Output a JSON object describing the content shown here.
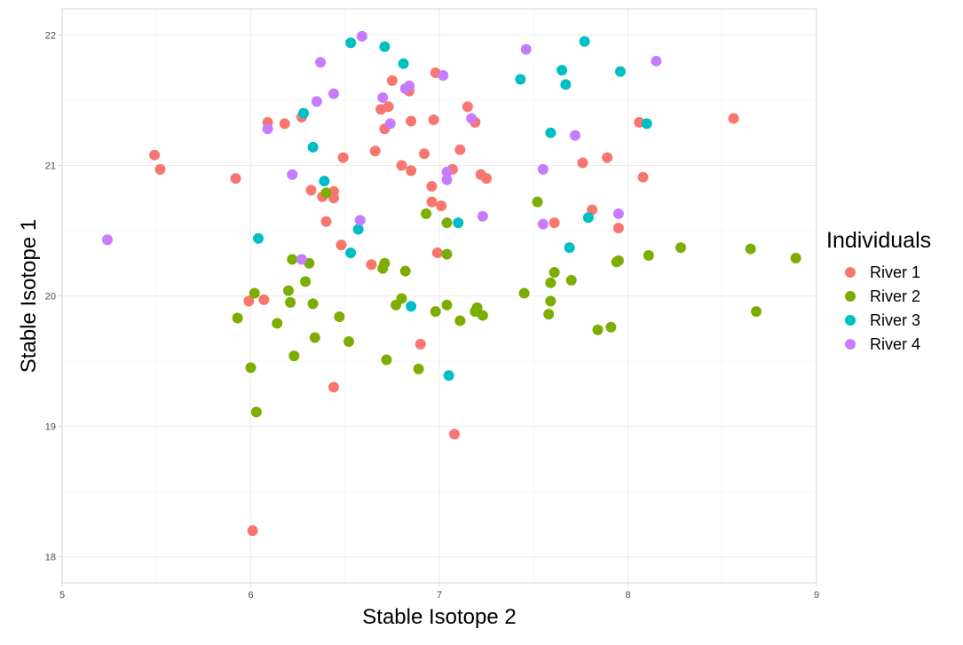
{
  "chart_data": {
    "type": "scatter",
    "title": "",
    "xlabel": "Stable Isotope 2",
    "ylabel": "Stable Isotope 1",
    "xlim": [
      5,
      9
    ],
    "ylim": [
      17.8,
      22.2
    ],
    "x_ticks": [
      5,
      6,
      7,
      8,
      9
    ],
    "y_ticks": [
      18,
      19,
      20,
      21,
      22
    ],
    "grid": true,
    "legend_title": "Individuals",
    "legend_position": "right",
    "series": [
      {
        "name": "River 1",
        "color": "#F8766D",
        "points": [
          [
            5.49,
            21.08
          ],
          [
            5.52,
            20.97
          ],
          [
            5.92,
            20.9
          ],
          [
            6.01,
            18.2
          ],
          [
            5.99,
            19.96
          ],
          [
            6.07,
            19.97
          ],
          [
            6.09,
            21.33
          ],
          [
            6.18,
            21.32
          ],
          [
            6.27,
            21.37
          ],
          [
            6.32,
            20.81
          ],
          [
            6.38,
            20.76
          ],
          [
            6.4,
            20.57
          ],
          [
            6.44,
            20.8
          ],
          [
            6.44,
            20.75
          ],
          [
            6.49,
            21.06
          ],
          [
            6.48,
            20.39
          ],
          [
            6.44,
            19.3
          ],
          [
            6.64,
            20.24
          ],
          [
            6.66,
            21.11
          ],
          [
            6.69,
            21.43
          ],
          [
            6.71,
            21.28
          ],
          [
            6.73,
            21.45
          ],
          [
            6.75,
            21.65
          ],
          [
            6.8,
            21.0
          ],
          [
            6.84,
            21.57
          ],
          [
            6.85,
            21.34
          ],
          [
            6.85,
            20.96
          ],
          [
            6.9,
            19.63
          ],
          [
            6.92,
            21.09
          ],
          [
            6.96,
            20.84
          ],
          [
            6.96,
            20.72
          ],
          [
            6.97,
            21.35
          ],
          [
            6.98,
            21.71
          ],
          [
            6.99,
            20.33
          ],
          [
            7.01,
            20.69
          ],
          [
            7.07,
            20.97
          ],
          [
            7.08,
            18.94
          ],
          [
            7.11,
            21.12
          ],
          [
            7.15,
            21.45
          ],
          [
            7.19,
            21.33
          ],
          [
            7.22,
            20.93
          ],
          [
            7.25,
            20.9
          ],
          [
            7.61,
            20.56
          ],
          [
            7.76,
            21.02
          ],
          [
            7.81,
            20.66
          ],
          [
            7.89,
            21.06
          ],
          [
            7.95,
            20.52
          ],
          [
            8.06,
            21.33
          ],
          [
            8.08,
            20.91
          ],
          [
            8.56,
            21.36
          ]
        ]
      },
      {
        "name": "River 2",
        "color": "#7CAE00",
        "points": [
          [
            5.93,
            19.83
          ],
          [
            6.0,
            19.45
          ],
          [
            6.02,
            20.02
          ],
          [
            6.03,
            19.11
          ],
          [
            6.14,
            19.79
          ],
          [
            6.2,
            20.04
          ],
          [
            6.21,
            19.95
          ],
          [
            6.22,
            20.28
          ],
          [
            6.23,
            19.54
          ],
          [
            6.29,
            20.11
          ],
          [
            6.31,
            20.25
          ],
          [
            6.33,
            19.94
          ],
          [
            6.34,
            19.68
          ],
          [
            6.4,
            20.79
          ],
          [
            6.47,
            19.84
          ],
          [
            6.52,
            19.65
          ],
          [
            6.7,
            20.21
          ],
          [
            6.71,
            20.25
          ],
          [
            6.72,
            19.51
          ],
          [
            6.77,
            19.93
          ],
          [
            6.8,
            19.98
          ],
          [
            6.82,
            20.19
          ],
          [
            6.89,
            19.44
          ],
          [
            6.93,
            20.63
          ],
          [
            6.98,
            19.88
          ],
          [
            7.04,
            20.56
          ],
          [
            7.04,
            20.32
          ],
          [
            7.04,
            19.93
          ],
          [
            7.11,
            19.81
          ],
          [
            7.19,
            19.88
          ],
          [
            7.2,
            19.91
          ],
          [
            7.23,
            19.85
          ],
          [
            7.45,
            20.02
          ],
          [
            7.52,
            20.72
          ],
          [
            7.58,
            19.86
          ],
          [
            7.59,
            19.96
          ],
          [
            7.59,
            20.1
          ],
          [
            7.61,
            20.18
          ],
          [
            7.7,
            20.12
          ],
          [
            7.84,
            19.74
          ],
          [
            7.91,
            19.76
          ],
          [
            7.94,
            20.26
          ],
          [
            7.95,
            20.27
          ],
          [
            8.11,
            20.31
          ],
          [
            8.28,
            20.37
          ],
          [
            8.65,
            20.36
          ],
          [
            8.68,
            19.88
          ],
          [
            8.89,
            20.29
          ]
        ]
      },
      {
        "name": "River 3",
        "color": "#00BFC4",
        "points": [
          [
            6.04,
            20.44
          ],
          [
            6.28,
            21.4
          ],
          [
            6.33,
            21.14
          ],
          [
            6.39,
            20.88
          ],
          [
            6.53,
            21.94
          ],
          [
            6.53,
            20.33
          ],
          [
            6.57,
            20.51
          ],
          [
            6.71,
            21.91
          ],
          [
            6.81,
            21.78
          ],
          [
            6.85,
            19.92
          ],
          [
            7.05,
            19.39
          ],
          [
            7.1,
            20.56
          ],
          [
            7.43,
            21.66
          ],
          [
            7.59,
            21.25
          ],
          [
            7.65,
            21.73
          ],
          [
            7.67,
            21.62
          ],
          [
            7.69,
            20.37
          ],
          [
            7.77,
            21.95
          ],
          [
            7.79,
            20.6
          ],
          [
            7.96,
            21.72
          ],
          [
            8.1,
            21.32
          ]
        ]
      },
      {
        "name": "River 4",
        "color": "#C77CFF",
        "points": [
          [
            5.24,
            20.43
          ],
          [
            6.09,
            21.28
          ],
          [
            6.22,
            20.93
          ],
          [
            6.27,
            20.28
          ],
          [
            6.35,
            21.49
          ],
          [
            6.37,
            21.79
          ],
          [
            6.44,
            21.55
          ],
          [
            6.58,
            20.58
          ],
          [
            6.59,
            21.99
          ],
          [
            6.7,
            21.52
          ],
          [
            6.74,
            21.32
          ],
          [
            6.82,
            21.59
          ],
          [
            6.84,
            21.61
          ],
          [
            7.02,
            21.69
          ],
          [
            7.04,
            20.95
          ],
          [
            7.04,
            20.89
          ],
          [
            7.17,
            21.36
          ],
          [
            7.23,
            20.61
          ],
          [
            7.46,
            21.89
          ],
          [
            7.55,
            20.97
          ],
          [
            7.55,
            20.55
          ],
          [
            7.72,
            21.23
          ],
          [
            7.95,
            20.63
          ],
          [
            8.15,
            21.8
          ]
        ]
      }
    ]
  }
}
